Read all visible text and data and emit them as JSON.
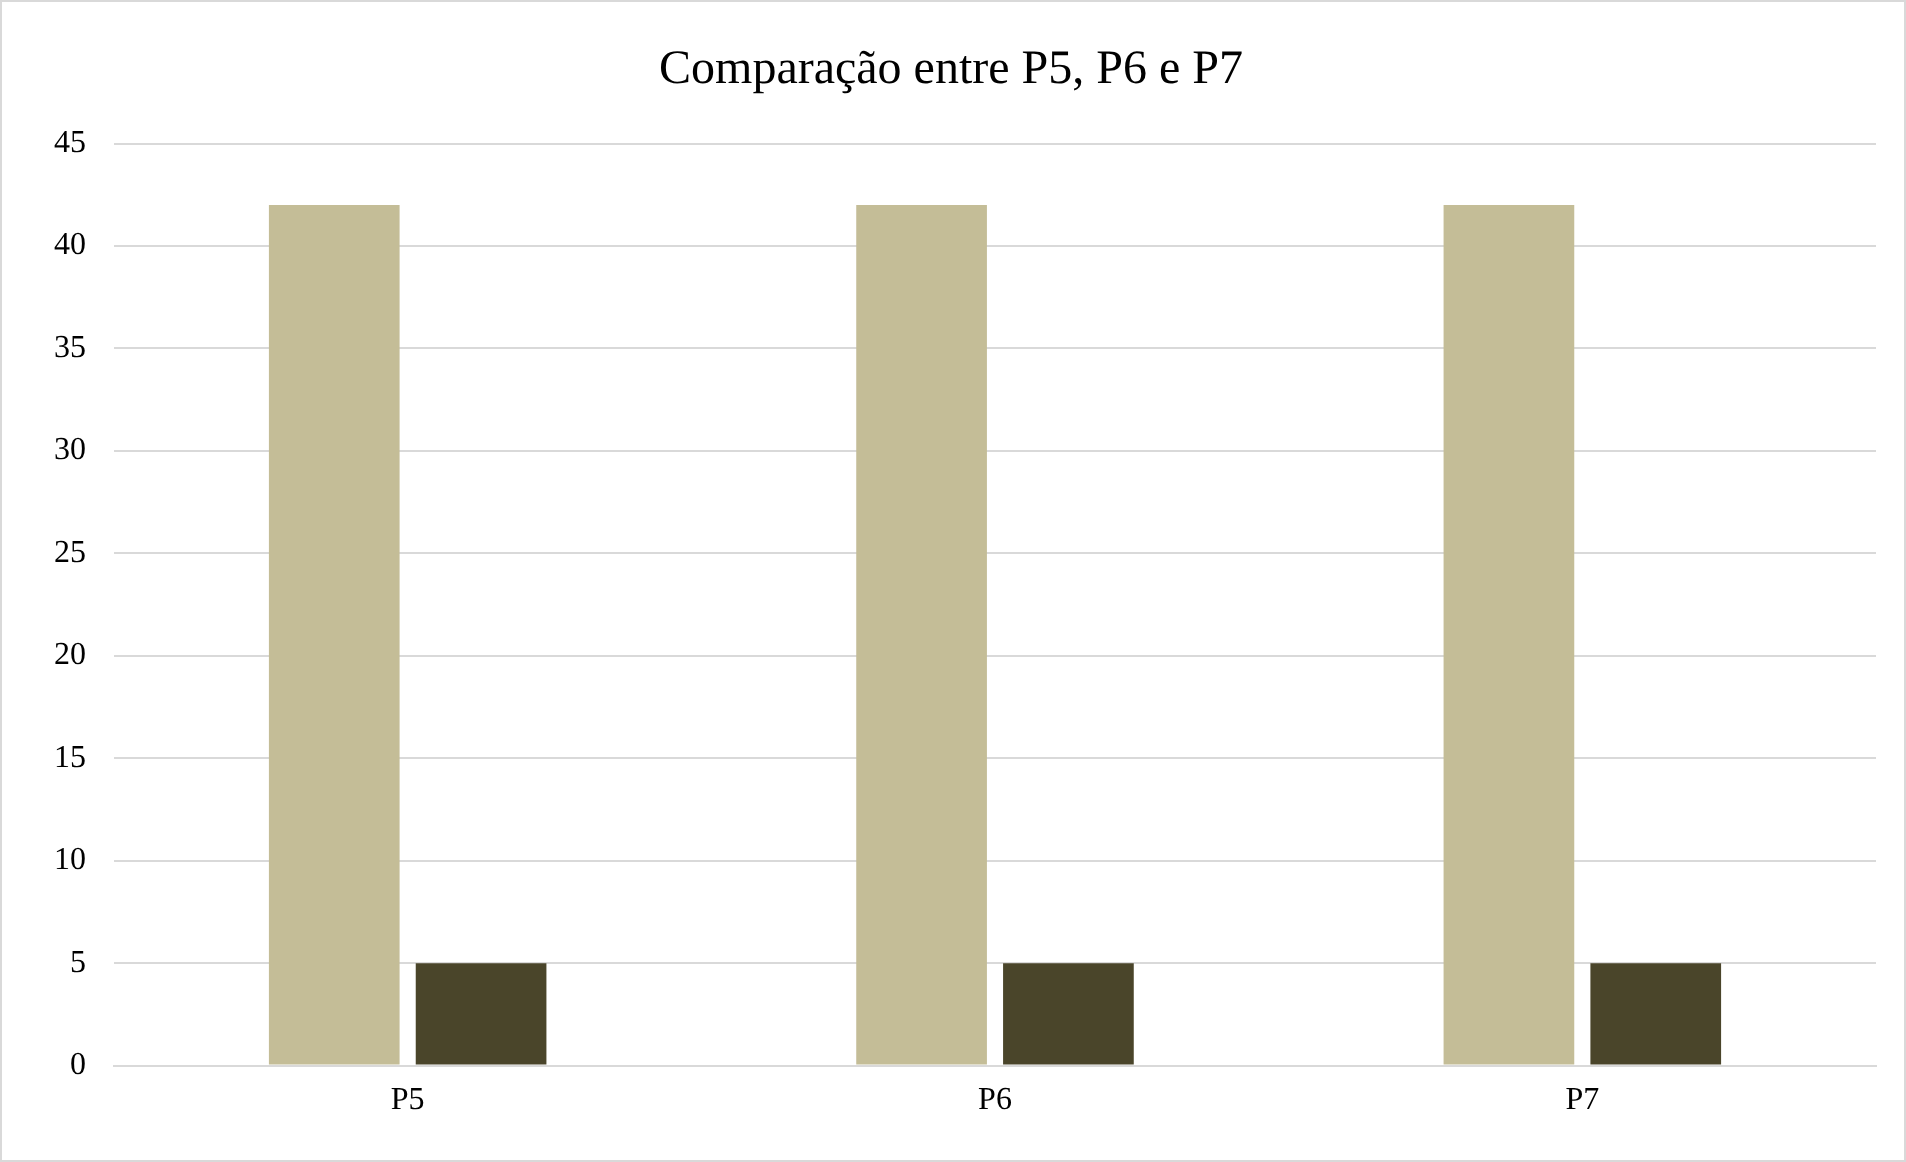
{
  "chart_data": {
    "type": "bar",
    "title": "Comparação entre P5, P6 e P7",
    "categories": [
      "P5",
      "P6",
      "P7"
    ],
    "series": [
      {
        "color": "#c4bd97",
        "values": [
          42,
          42,
          42
        ]
      },
      {
        "color": "#4a452a",
        "values": [
          5,
          5,
          5
        ]
      }
    ],
    "ylim": [
      0,
      45
    ],
    "yticks": [
      0,
      5,
      10,
      15,
      20,
      25,
      30,
      35,
      40,
      45
    ],
    "grid": "y",
    "legend": false
  }
}
